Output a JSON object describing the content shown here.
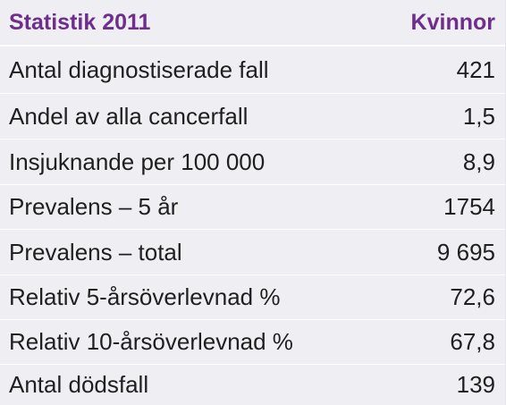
{
  "table": {
    "header": {
      "title": "Statistik 2011",
      "column": "Kvinnor"
    },
    "rows": [
      {
        "label": "Antal diagnostiserade fall",
        "value": "421"
      },
      {
        "label": "Andel av alla cancerfall",
        "value": "1,5"
      },
      {
        "label": "Insjuknande per 100 000",
        "value": "8,9"
      },
      {
        "label": "Prevalens – 5 år",
        "value": "1754"
      },
      {
        "label": "Prevalens – total",
        "value": "9 695"
      },
      {
        "label": "Relativ 5-årsöverlevnad %",
        "value": "72,6"
      },
      {
        "label": "Relativ 10-årsöverlevnad %",
        "value": "67,8"
      },
      {
        "label": "Antal dödsfall",
        "value": "139"
      }
    ]
  },
  "colors": {
    "header_text": "#6e2d8f",
    "background": "#efeef3",
    "body_text": "#1f1f1f",
    "row_divider": "#ffffff"
  }
}
